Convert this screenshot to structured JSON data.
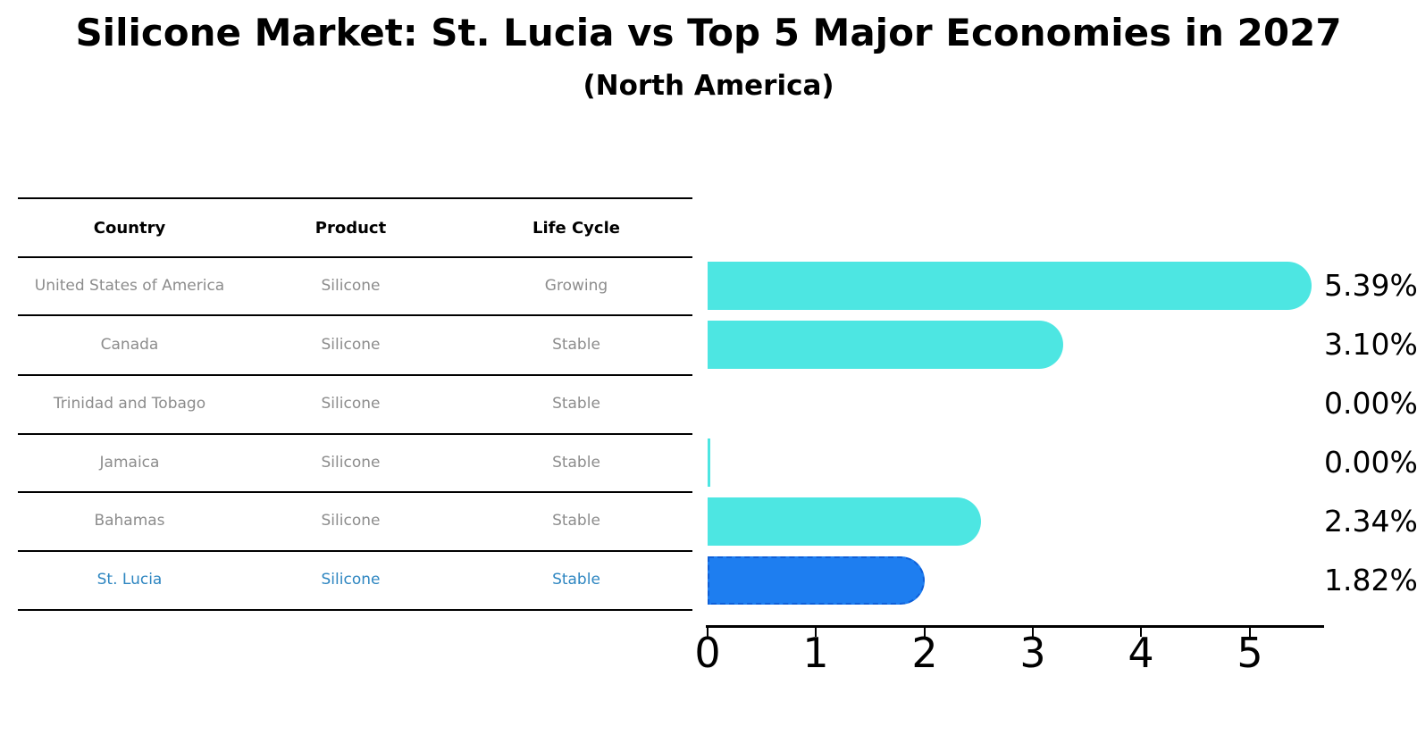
{
  "title": "Silicone Market: St. Lucia vs Top 5 Major Economies in 2027",
  "subtitle": "(North America)",
  "table": {
    "headers": {
      "country": "Country",
      "product": "Product",
      "life_cycle": "Life Cycle"
    },
    "rows": [
      {
        "country": "United States of America",
        "product": "Silicone",
        "life_cycle": "Growing",
        "highlight": false
      },
      {
        "country": "Canada",
        "product": "Silicone",
        "life_cycle": "Stable",
        "highlight": false
      },
      {
        "country": "Trinidad and Tobago",
        "product": "Silicone",
        "life_cycle": "Stable",
        "highlight": false
      },
      {
        "country": "Jamaica",
        "product": "Silicone",
        "life_cycle": "Stable",
        "highlight": false
      },
      {
        "country": "Bahamas",
        "product": "Silicone",
        "life_cycle": "Stable",
        "highlight": false
      },
      {
        "country": "St. Lucia",
        "product": "Silicone",
        "life_cycle": "Stable",
        "highlight": true
      }
    ]
  },
  "chart_data": {
    "type": "bar",
    "orientation": "horizontal",
    "title": "Silicone Market: St. Lucia vs Top 5 Major Economies in 2027 (North America)",
    "categories": [
      "United States of America",
      "Canada",
      "Trinidad and Tobago",
      "Jamaica",
      "Bahamas",
      "St. Lucia"
    ],
    "values": [
      5.39,
      3.1,
      0.0,
      0.005,
      2.34,
      1.82
    ],
    "value_labels": [
      "5.39%",
      "3.10%",
      "0.00%",
      "0.00%",
      "2.34%",
      "1.82%"
    ],
    "xticks": [
      "0",
      "1",
      "2",
      "3",
      "4",
      "5"
    ],
    "xlim": [
      0,
      5.67
    ],
    "grid": false,
    "legend": "none",
    "highlight_index": 5,
    "bar_color": "#4DE6E2",
    "highlight_color": "#1E7EF0",
    "highlight_border_color": "#0E5FD8",
    "highlight_text_color": "#2E86C1"
  }
}
